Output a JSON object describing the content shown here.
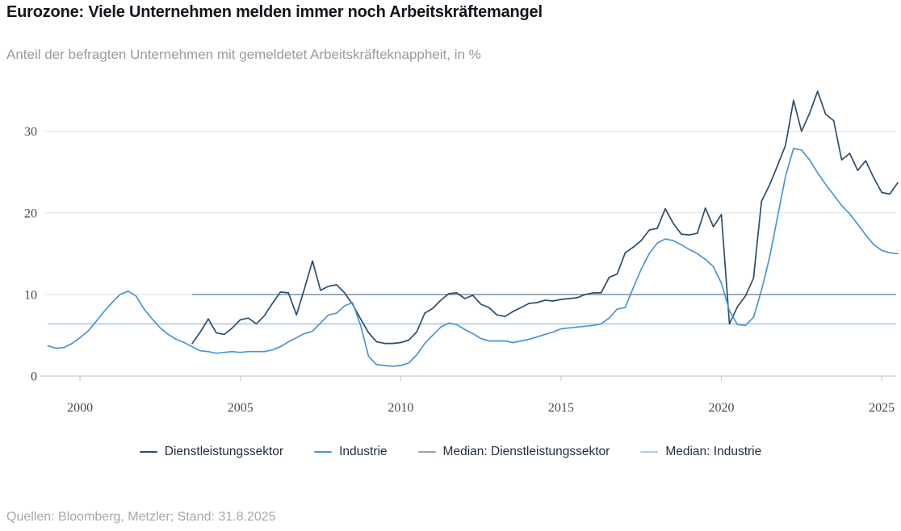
{
  "header": {
    "title": "Eurozone: Viele Unternehmen melden immer noch Arbeitskräftemangel",
    "subtitle": "Anteil der befragten Unternehmen mit gemeldetet Arbeitskräfteknappheit, in %"
  },
  "footer": {
    "source": "Quellen: Bloomberg, Metzler; Stand: 31.8.2025"
  },
  "colors": {
    "title": "#14141e",
    "subtitle": "#9b9b9b",
    "gridline": "#e2e2e2",
    "axis": "#c9c9c9",
    "tick_label": "#4b4b4b",
    "legend_text": "#233040",
    "source": "#a7a7a7"
  },
  "chart_data": {
    "type": "line",
    "title": "Eurozone: Viele Unternehmen melden immer noch Arbeitskräftemangel",
    "subtitle": "Anteil der befragten Unternehmen mit gemeldetet Arbeitskräfteknappheit, in %",
    "xlabel": "",
    "ylabel": "in %",
    "ylim": [
      0,
      36.2
    ],
    "x_range": [
      1998.89,
      2025.55
    ],
    "y_ticks": [
      0,
      10,
      20,
      30
    ],
    "x_ticks": [
      2000,
      2005,
      2010,
      2015,
      2020,
      2025
    ],
    "grid": "horizontal",
    "legend_position": "bottom",
    "series": [
      {
        "name": "Dienstleistungssektor",
        "type": "line",
        "color": "#2d4e6b",
        "start": 2003.5,
        "step": 0.25,
        "values": [
          4.0,
          5.4,
          7.0,
          5.3,
          5.1,
          5.9,
          6.9,
          7.1,
          6.4,
          7.4,
          8.9,
          10.3,
          10.2,
          7.5,
          10.7,
          14.1,
          10.5,
          11.0,
          11.2,
          10.2,
          8.8,
          7.0,
          5.3,
          4.2,
          4.0,
          4.0,
          4.1,
          4.4,
          5.4,
          7.7,
          8.3,
          9.3,
          10.1,
          10.2,
          9.5,
          9.9,
          8.8,
          8.4,
          7.5,
          7.3,
          7.9,
          8.4,
          8.9,
          9.0,
          9.3,
          9.2,
          9.4,
          9.5,
          9.6,
          10.0,
          10.2,
          10.2,
          12.1,
          12.5,
          15.1,
          15.8,
          16.6,
          17.9,
          18.1,
          20.5,
          18.7,
          17.4,
          17.3,
          17.5,
          20.6,
          18.3,
          19.8,
          6.4,
          8.5,
          9.8,
          12.0,
          21.4,
          23.4,
          25.8,
          28.3,
          33.8,
          30.0,
          32.2,
          34.9,
          32.1,
          31.3,
          26.5,
          27.3,
          25.2,
          26.4,
          24.3,
          22.5,
          22.3,
          23.7
        ]
      },
      {
        "name": "Industrie",
        "type": "line",
        "color": "#4b94d8",
        "start": 1999.0,
        "step": 0.25,
        "values": [
          3.7,
          3.4,
          3.5,
          4.0,
          4.7,
          5.5,
          6.7,
          7.9,
          9.0,
          10.0,
          10.4,
          9.8,
          8.2,
          7.0,
          5.9,
          5.1,
          4.5,
          4.1,
          3.6,
          3.1,
          3.0,
          2.8,
          2.9,
          3.0,
          2.9,
          3.0,
          3.0,
          3.0,
          3.2,
          3.6,
          4.2,
          4.7,
          5.2,
          5.5,
          6.5,
          7.5,
          7.7,
          8.6,
          9.0,
          6.2,
          2.4,
          1.4,
          1.3,
          1.2,
          1.3,
          1.6,
          2.6,
          4.0,
          5.0,
          6.0,
          6.5,
          6.3,
          5.7,
          5.2,
          4.6,
          4.3,
          4.3,
          4.3,
          4.1,
          4.3,
          4.5,
          4.8,
          5.1,
          5.4,
          5.8,
          5.9,
          6.0,
          6.1,
          6.2,
          6.4,
          7.1,
          8.2,
          8.4,
          10.8,
          13.1,
          15.0,
          16.3,
          16.8,
          16.6,
          16.1,
          15.5,
          15.0,
          14.3,
          13.4,
          11.4,
          8.0,
          6.3,
          6.2,
          7.2,
          10.5,
          14.5,
          19.5,
          24.5,
          27.9,
          27.7,
          26.5,
          24.9,
          23.5,
          22.2,
          20.9,
          19.9,
          18.6,
          17.3,
          16.1,
          15.4,
          15.1,
          15.0
        ]
      },
      {
        "name": "Median: Dienstleistungssektor",
        "type": "hline",
        "color": "#8ea2b2",
        "value": 10.0,
        "x_start": 2003.5,
        "x_end": 2025.45
      },
      {
        "name": "Median: Industrie",
        "type": "hline",
        "color": "#a9cfeb",
        "value": 6.4,
        "x_start": 1999.0,
        "x_end": 2025.45
      }
    ]
  }
}
